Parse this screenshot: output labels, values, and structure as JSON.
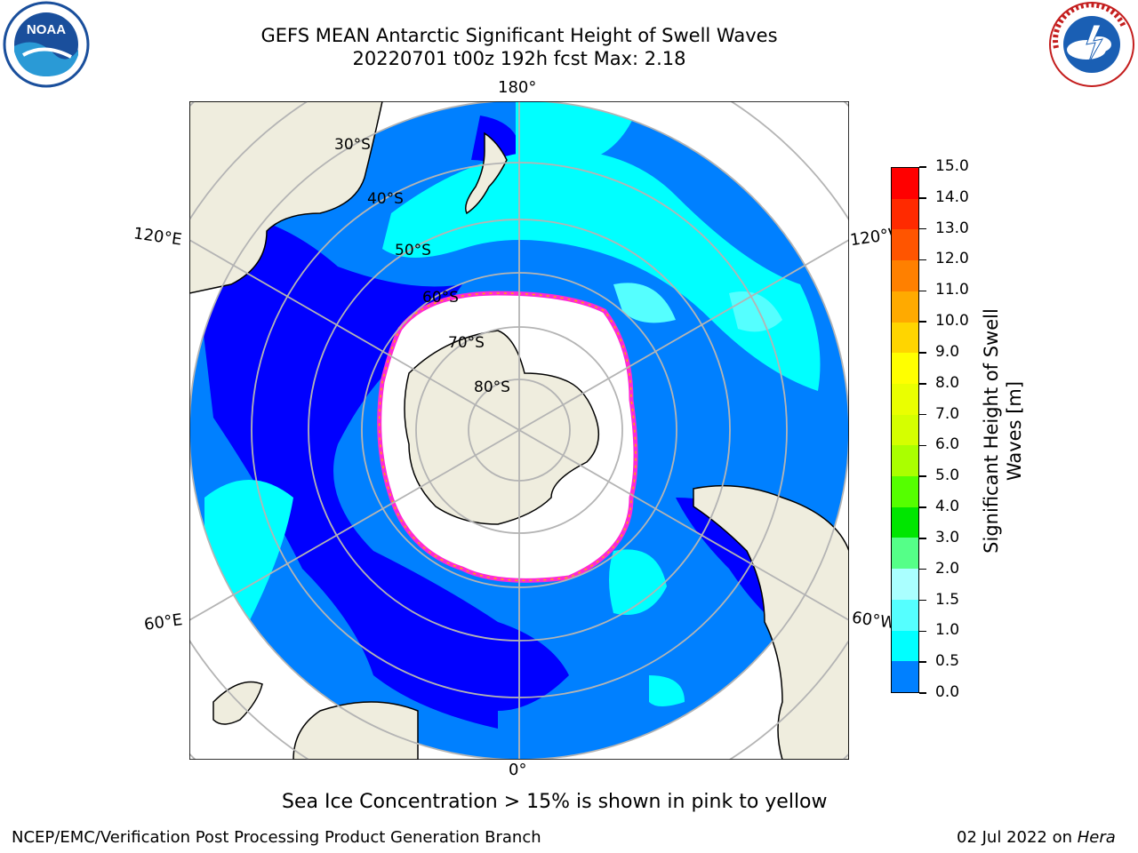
{
  "title": {
    "line1": "GEFS MEAN Antarctic Significant Height of Swell Waves",
    "line2": "20220701 t00z 192h fcst   Max: 2.18"
  },
  "map": {
    "projection": "south-polar-stereographic",
    "longitude_labels": {
      "top": "180°",
      "bottom": "0°",
      "left_upper": "120°E",
      "left_lower": "60°E",
      "right_upper": "120°W",
      "right_lower": "60°W"
    },
    "latitude_labels": [
      "30°S",
      "40°S",
      "50°S",
      "60°S",
      "70°S",
      "80°S"
    ]
  },
  "colorbar": {
    "label_line1": "Significant Height of Swell",
    "label_line2": "Waves [m]",
    "ticks": [
      "15.0",
      "14.0",
      "13.0",
      "12.0",
      "11.0",
      "10.0",
      "9.0",
      "8.0",
      "7.0",
      "6.0",
      "5.0",
      "4.0",
      "3.0",
      "2.0",
      "1.5",
      "1.0",
      "0.5",
      "0.0"
    ],
    "colors": [
      "#ff0000",
      "#ff2a00",
      "#ff5500",
      "#ff8000",
      "#ffaa00",
      "#ffd500",
      "#ffff00",
      "#eaff00",
      "#d5ff00",
      "#aaff00",
      "#55ff00",
      "#00e600",
      "#55ff88",
      "#aaffff",
      "#55ffff",
      "#00ffff",
      "#0080ff",
      "#0000ff"
    ]
  },
  "caption": "Sea Ice Concentration > 15% is shown in pink to yellow",
  "footer": {
    "left": "NCEP/EMC/Verification Post Processing Product Generation Branch",
    "right_date": "02 Jul 2022 on ",
    "right_host": "Hera"
  },
  "logos": {
    "left": "NOAA",
    "right": "NATIONAL WEATHER SERVICE"
  }
}
